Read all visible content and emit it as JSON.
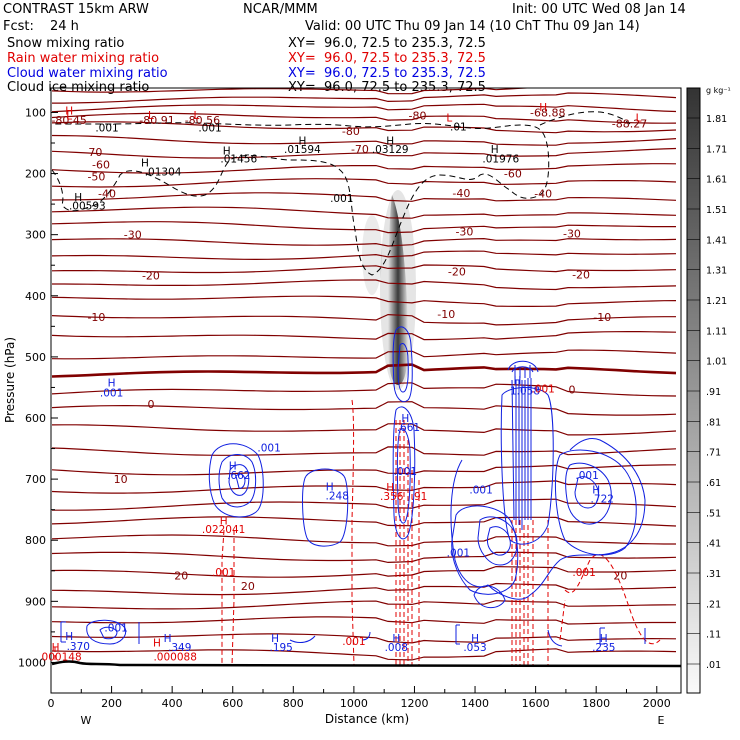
{
  "header": {
    "model": "CONTRAST 15km ARW",
    "center": "NCAR/MMM",
    "init": "Init: 00 UTC Wed 08 Jan 14",
    "fcst_label": "Fcst:",
    "fcst_value": "24 h",
    "valid": "Valid: 00 UTC Thu 09 Jan 14 (10 ChT Thu 09 Jan 14)"
  },
  "fields": [
    {
      "name": "Snow mixing ratio",
      "xy": "XY=  96.0, 72.5 to 235.3, 72.5",
      "color": "#000000"
    },
    {
      "name": "Rain water mixing ratio",
      "xy": "XY=  96.0, 72.5 to 235.3, 72.5",
      "color": "#e00000"
    },
    {
      "name": "Cloud water mixing ratio",
      "xy": "XY=  96.0, 72.5 to 235.3, 72.5",
      "color": "#0000e0"
    },
    {
      "name": "Cloud ice mixing ratio",
      "xy": "XY=  96.0, 72.5 to 235.3, 72.5",
      "color": "#000000"
    }
  ],
  "colorbar": {
    "unit": "g kg⁻¹",
    "labels": [
      "1.81",
      "1.71",
      "1.61",
      "1.51",
      "1.41",
      "1.31",
      "1.21",
      "1.11",
      "1.01",
      ".91",
      ".81",
      ".71",
      ".61",
      ".51",
      ".41",
      ".31",
      ".21",
      ".11",
      ".01"
    ]
  },
  "chart_data": {
    "type": "contour",
    "xlabel": "Distance (km)",
    "ylabel": "Pressure (hPa)",
    "xlim": [
      0,
      2080
    ],
    "ylim": [
      1050,
      60
    ],
    "x_ticks": [
      "0",
      "200",
      "400",
      "600",
      "800",
      "1000",
      "1200",
      "1400",
      "1600",
      "1800",
      "2000"
    ],
    "y_ticks": [
      "100",
      "200",
      "300",
      "400",
      "500",
      "600",
      "700",
      "800",
      "900",
      "1000"
    ],
    "west_label": "W",
    "east_label": "E",
    "temperature_labels": [
      {
        "text": "-80.45",
        "x": 60,
        "p": 112
      },
      {
        "text": "-80.91",
        "x": 350,
        "p": 112
      },
      {
        "text": "-80.56",
        "x": 500,
        "p": 112
      },
      {
        "text": "-80",
        "x": 1210,
        "p": 105
      },
      {
        "text": "-80",
        "x": 990,
        "p": 130
      },
      {
        "text": "-68.88",
        "x": 1640,
        "p": 100
      },
      {
        "text": "-88.27",
        "x": 1910,
        "p": 118
      },
      {
        "text": "-70",
        "x": 140,
        "p": 165
      },
      {
        "text": "-70",
        "x": 1020,
        "p": 160
      },
      {
        "text": "-60",
        "x": 165,
        "p": 185
      },
      {
        "text": "-60",
        "x": 1525,
        "p": 200
      },
      {
        "text": "-50",
        "x": 150,
        "p": 205
      },
      {
        "text": "-40",
        "x": 185,
        "p": 233
      },
      {
        "text": "-40",
        "x": 1355,
        "p": 232
      },
      {
        "text": "-40",
        "x": 1625,
        "p": 233
      },
      {
        "text": "-30",
        "x": 270,
        "p": 300
      },
      {
        "text": "-30",
        "x": 1365,
        "p": 295
      },
      {
        "text": "-30",
        "x": 1720,
        "p": 298
      },
      {
        "text": "-20",
        "x": 330,
        "p": 367
      },
      {
        "text": "-20",
        "x": 1340,
        "p": 360
      },
      {
        "text": "-20",
        "x": 1750,
        "p": 365
      },
      {
        "text": "-10",
        "x": 150,
        "p": 435
      },
      {
        "text": "-10",
        "x": 1305,
        "p": 430
      },
      {
        "text": "-10",
        "x": 1820,
        "p": 435
      },
      {
        "text": "0",
        "x": 330,
        "p": 577
      },
      {
        "text": "0",
        "x": 1720,
        "p": 553
      },
      {
        "text": "10",
        "x": 230,
        "p": 700
      },
      {
        "text": "20",
        "x": 430,
        "p": 858
      },
      {
        "text": "20",
        "x": 650,
        "p": 875
      },
      {
        "text": "20",
        "x": 1880,
        "p": 858
      }
    ],
    "maxima_labels": [
      {
        "text": "H",
        "x": 60,
        "p": 97,
        "color": "red"
      },
      {
        "text": "L",
        "x": 60,
        "p": 105,
        "color": "red"
      },
      {
        "text": "L",
        "x": 330,
        "p": 104,
        "color": "red"
      },
      {
        "text": "L",
        "x": 480,
        "p": 104,
        "color": "red"
      },
      {
        "text": "L",
        "x": 1315,
        "p": 108,
        "color": "red"
      },
      {
        "text": "L",
        "x": 1940,
        "p": 108,
        "color": "red"
      },
      {
        "text": "H",
        "x": 1625,
        "p": 91,
        "color": "red"
      },
      {
        "text": ".001",
        "x": 185,
        "p": 125,
        "color": "black"
      },
      {
        "text": ".001",
        "x": 525,
        "p": 125,
        "color": "black"
      },
      {
        "text": ".01",
        "x": 1345,
        "p": 123,
        "color": "black"
      },
      {
        "text": "H",
        "x": 830,
        "p": 146,
        "color": "black"
      },
      {
        "text": ".01594",
        "x": 830,
        "p": 160,
        "color": "black"
      },
      {
        "text": "H",
        "x": 1120,
        "p": 146,
        "color": "black"
      },
      {
        "text": ".03129",
        "x": 1120,
        "p": 160,
        "color": "black"
      },
      {
        "text": "H",
        "x": 580,
        "p": 162,
        "color": "black"
      },
      {
        "text": ".01456",
        "x": 620,
        "p": 175,
        "color": "black"
      },
      {
        "text": "H",
        "x": 1465,
        "p": 160,
        "color": "black"
      },
      {
        "text": ".01976",
        "x": 1485,
        "p": 175,
        "color": "black"
      },
      {
        "text": "H",
        "x": 310,
        "p": 182,
        "color": "black"
      },
      {
        "text": ".01304",
        "x": 370,
        "p": 197,
        "color": "black"
      },
      {
        "text": "H",
        "x": 90,
        "p": 238,
        "color": "black"
      },
      {
        "text": ".00593",
        "x": 120,
        "p": 252,
        "color": "black"
      },
      {
        "text": ".001",
        "x": 960,
        "p": 240,
        "color": "black"
      },
      {
        "text": "H",
        "x": 200,
        "p": 542,
        "color": "blue"
      },
      {
        "text": ".001",
        "x": 200,
        "p": 558,
        "color": "blue"
      },
      {
        "text": ".001",
        "x": 720,
        "p": 648,
        "color": "blue"
      },
      {
        "text": "H",
        "x": 600,
        "p": 678,
        "color": "blue"
      },
      {
        "text": ".662",
        "x": 620,
        "p": 693,
        "color": "blue"
      },
      {
        "text": "H",
        "x": 920,
        "p": 712,
        "color": "blue"
      },
      {
        "text": ".248",
        "x": 945,
        "p": 727,
        "color": "blue"
      },
      {
        "text": "H",
        "x": 1170,
        "p": 600,
        "color": "blue"
      },
      {
        "text": ".661",
        "x": 1180,
        "p": 615,
        "color": "blue"
      },
      {
        "text": ".001",
        "x": 1170,
        "p": 687,
        "color": "blue"
      },
      {
        "text": "H",
        "x": 1120,
        "p": 713,
        "color": "red"
      },
      {
        "text": ".356",
        "x": 1125,
        "p": 728,
        "color": "red"
      },
      {
        "text": ".91",
        "x": 1215,
        "p": 728,
        "color": "red"
      },
      {
        "text": "H",
        "x": 1540,
        "p": 538,
        "color": "blue"
      },
      {
        "text": "1.058",
        "x": 1565,
        "p": 555,
        "color": "blue"
      },
      {
        "text": ".001",
        "x": 1625,
        "p": 552,
        "color": "red"
      },
      {
        "text": ".001",
        "x": 1420,
        "p": 717,
        "color": "blue"
      },
      {
        "text": ".001",
        "x": 1770,
        "p": 693,
        "color": "blue"
      },
      {
        "text": "H",
        "x": 1800,
        "p": 717,
        "color": "blue"
      },
      {
        "text": ".722",
        "x": 1820,
        "p": 732,
        "color": "blue"
      },
      {
        "text": ".001",
        "x": 1345,
        "p": 820,
        "color": "blue"
      },
      {
        "text": "H",
        "x": 570,
        "p": 768,
        "color": "red"
      },
      {
        "text": ".022041",
        "x": 570,
        "p": 782,
        "color": "red"
      },
      {
        "text": ".001",
        "x": 570,
        "p": 852,
        "color": "red"
      },
      {
        "text": ".001",
        "x": 1760,
        "p": 852,
        "color": "red"
      },
      {
        "text": "H",
        "x": 60,
        "p": 957,
        "color": "blue"
      },
      {
        "text": ".370",
        "x": 90,
        "p": 973,
        "color": "blue"
      },
      {
        "text": ".001",
        "x": 215,
        "p": 943,
        "color": "blue"
      },
      {
        "text": "H",
        "x": 15,
        "p": 975,
        "color": "red"
      },
      {
        "text": "000148",
        "x": 35,
        "p": 990,
        "color": "red"
      },
      {
        "text": "H",
        "x": 350,
        "p": 967,
        "color": "red"
      },
      {
        "text": ".000088",
        "x": 410,
        "p": 990,
        "color": "red"
      },
      {
        "text": "H",
        "x": 385,
        "p": 960,
        "color": "blue"
      },
      {
        "text": ".349",
        "x": 425,
        "p": 975,
        "color": "blue"
      },
      {
        "text": "H",
        "x": 740,
        "p": 960,
        "color": "blue"
      },
      {
        "text": ".195",
        "x": 760,
        "p": 975,
        "color": "blue"
      },
      {
        "text": ".001",
        "x": 1000,
        "p": 965,
        "color": "red"
      },
      {
        "text": "H",
        "x": 1140,
        "p": 960,
        "color": "blue"
      },
      {
        "text": ".008",
        "x": 1140,
        "p": 975,
        "color": "blue"
      },
      {
        "text": "H",
        "x": 1400,
        "p": 960,
        "color": "blue"
      },
      {
        "text": ".053",
        "x": 1400,
        "p": 975,
        "color": "blue"
      },
      {
        "text": "H",
        "x": 1825,
        "p": 960,
        "color": "blue"
      },
      {
        "text": ".235",
        "x": 1825,
        "p": 975,
        "color": "blue"
      }
    ]
  }
}
